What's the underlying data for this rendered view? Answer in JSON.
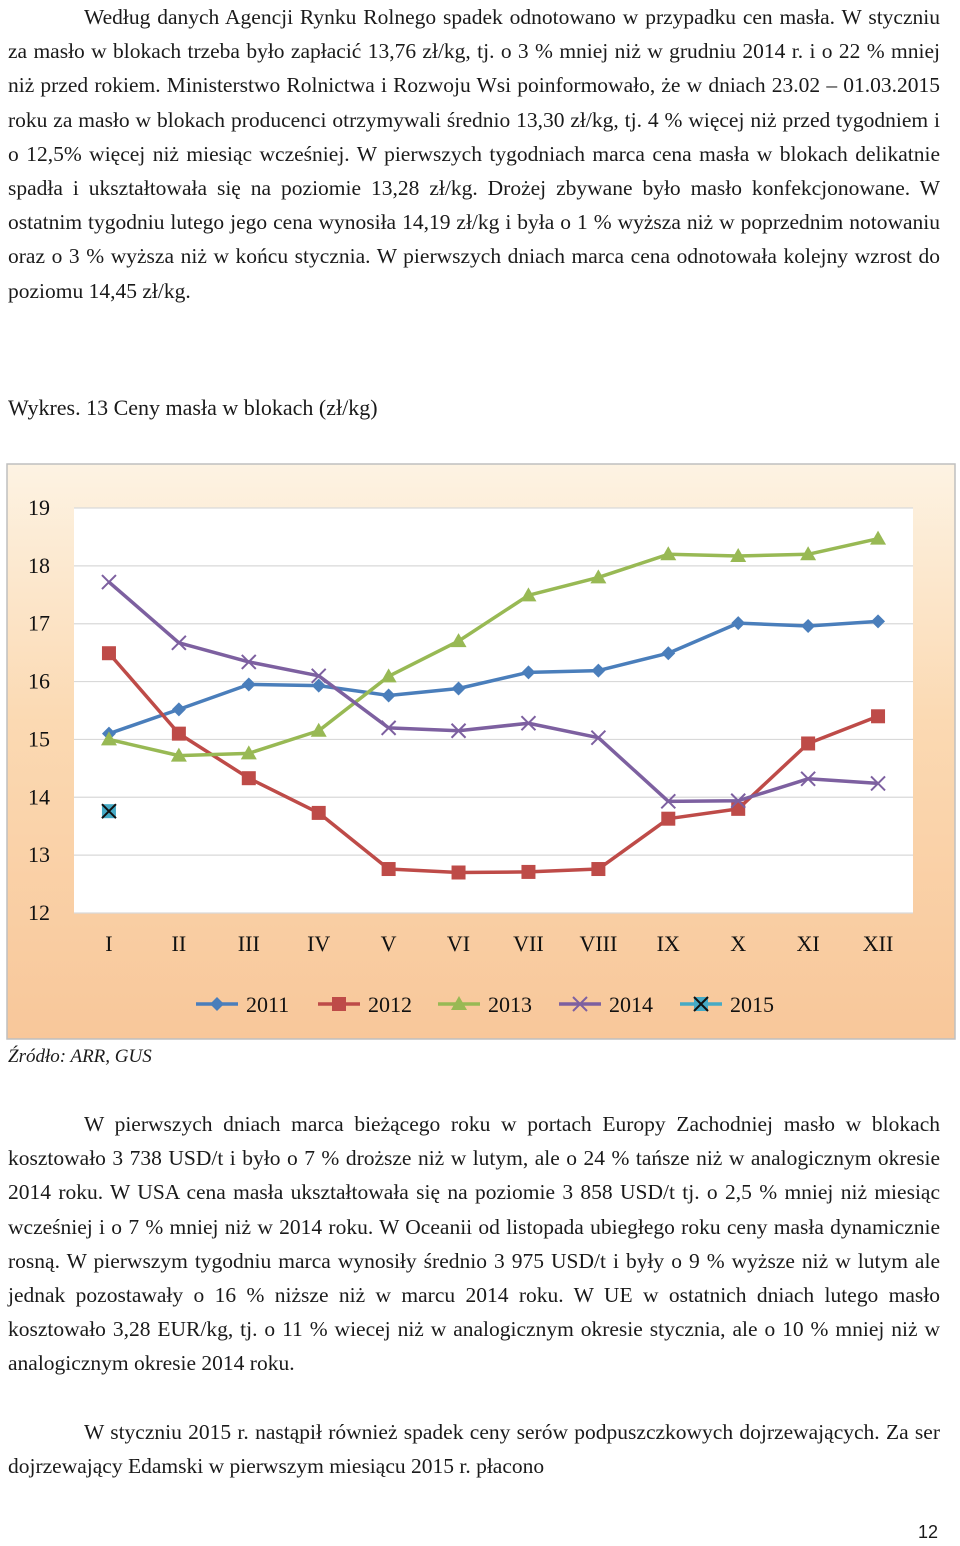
{
  "text": {
    "para1": "Według danych Agencji Rynku Rolnego spadek odnotowano w przypadku cen masła. W styczniu za masło w blokach trzeba było zapłacić 13,76 zł/kg, tj. o 3 % mniej niż w grudniu 2014 r. i o 22 % mniej niż przed rokiem. Ministerstwo Rolnictwa i Rozwoju Wsi poinformowało, że w dniach 23.02 – 01.03.2015 roku za masło w blokach producenci otrzymywali średnio 13,30 zł/kg, tj. 4 % więcej niż przed tygodniem i o 12,5% więcej niż miesiąc wcześniej. W pierwszych tygodniach marca cena masła w blokach delikatnie spadła i ukształtowała się na poziomie 13,28 zł/kg. Drożej zbywane było masło konfekcjonowane. W ostatnim tygodniu lutego jego cena wynosiła 14,19 zł/kg i była o 1 % wyższa niż w poprzednim notowaniu oraz o 3 % wyższa niż w końcu stycznia. W pierwszych dniach marca cena odnotowała kolejny wzrost do poziomu 14,45 zł/kg.",
    "caption": "Wykres. 13 Ceny masła w blokach (zł/kg)",
    "source": "Źródło: ARR, GUS",
    "para2": "W pierwszych dniach marca bieżącego roku w portach Europy Zachodniej masło w blokach kosztowało 3 738 USD/t i było o 7 % droższe niż w lutym, ale o 24 % tańsze niż w analogicznym okresie 2014 roku. W USA cena masła ukształtowała się na poziomie 3 858 USD/t tj. o 2,5 % mniej niż miesiąc wcześniej i o 7 % mniej niż w 2014 roku. W Oceanii od listopada ubiegłego roku ceny masła dynamicznie rosną. W pierwszym tygodniu marca wynosiły średnio 3 975 USD/t i były o 9 % wyższe niż w lutym ale jednak pozostawały o 16 % niższe niż w marcu 2014 roku. W UE w ostatnich dniach lutego masło kosztowało 3,28 EUR/kg, tj. o 11 % wiecej niż w analogicznym okresie stycznia, ale o 10 % mniej niż w analogicznym okresie 2014 roku.",
    "para3": "W styczniu 2015 r. nastąpił również spadek ceny serów podpuszczkowych dojrzewających. Za ser dojrzewający Edamski w pierwszym miesiącu 2015 r. płacono",
    "page_number": "12"
  },
  "chart_data": {
    "type": "line",
    "title": "Wykres. 13 Ceny masła w blokach (zł/kg)",
    "categories": [
      "I",
      "II",
      "III",
      "IV",
      "V",
      "VI",
      "VII",
      "VIII",
      "IX",
      "X",
      "XI",
      "XII"
    ],
    "ylim": [
      12,
      19
    ],
    "yticks": [
      19,
      18,
      17,
      16,
      15,
      14,
      13,
      12
    ],
    "legend_position": "bottom",
    "series": [
      {
        "name": "2011",
        "color": "#4a7ebb",
        "marker": "diamond",
        "values": [
          15.1,
          15.52,
          15.95,
          15.93,
          15.76,
          15.88,
          16.16,
          16.19,
          16.49,
          17.01,
          16.96,
          17.04
        ]
      },
      {
        "name": "2012",
        "color": "#be4b48",
        "marker": "square",
        "values": [
          16.49,
          15.1,
          14.33,
          13.73,
          12.76,
          12.7,
          12.71,
          12.76,
          13.63,
          13.8,
          14.93,
          15.4
        ]
      },
      {
        "name": "2013",
        "color": "#98b954",
        "marker": "triangle",
        "values": [
          15.0,
          14.72,
          14.76,
          15.15,
          16.09,
          16.7,
          17.49,
          17.8,
          18.2,
          18.17,
          18.2,
          18.47
        ]
      },
      {
        "name": "2014",
        "color": "#7d60a0",
        "marker": "x",
        "values": [
          17.72,
          16.67,
          16.34,
          16.1,
          15.2,
          15.15,
          15.28,
          15.03,
          13.93,
          13.94,
          14.32,
          14.24
        ]
      },
      {
        "name": "2015",
        "color": "#46aac5",
        "marker": "xsquare",
        "values": [
          13.76,
          null,
          null,
          null,
          null,
          null,
          null,
          null,
          null,
          null,
          null,
          null
        ]
      }
    ]
  }
}
